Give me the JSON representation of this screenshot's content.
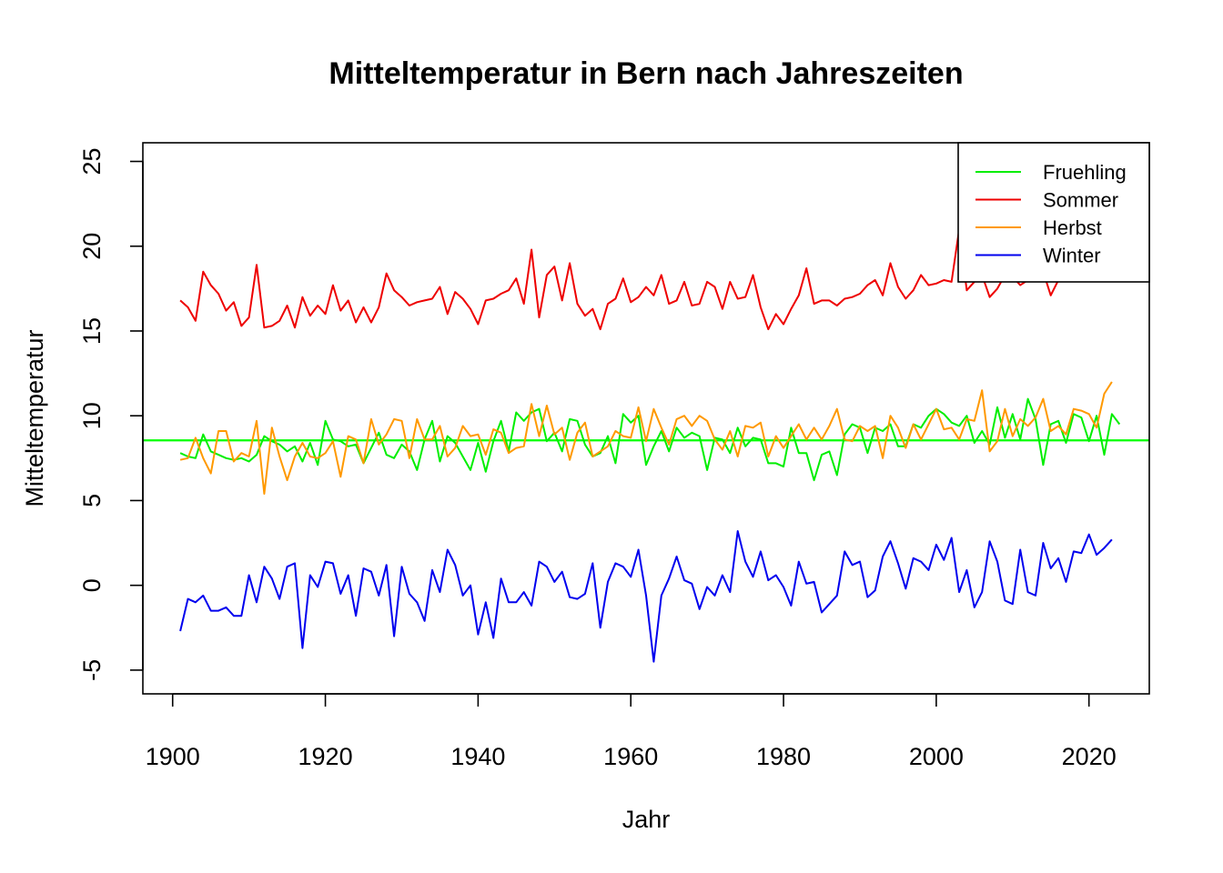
{
  "chart_data": {
    "type": "line",
    "title": "Mitteltemperatur in Bern nach Jahreszeiten",
    "xlabel": "Jahr",
    "ylabel": "Mitteltemperatur",
    "xlim": [
      1896.1,
      1927.9
    ],
    "ylim": [
      -6.4,
      26.1
    ],
    "x_ticks": [
      1900,
      1920,
      1940,
      1960,
      1980,
      2000,
      2020
    ],
    "y_ticks": [
      -5,
      0,
      5,
      10,
      15,
      20,
      25
    ],
    "x_tick_labels": [
      "1900",
      "1920",
      "1940",
      "1960",
      "1980",
      "2000",
      "2020"
    ],
    "y_tick_labels": [
      "-5",
      "0",
      "5",
      "10",
      "15",
      "20",
      "25"
    ],
    "legend_position": "top-right",
    "hline": {
      "y": 8.55,
      "color": "#00ff00"
    },
    "x_start": 1901,
    "series": [
      {
        "name": "Fruehling",
        "color": "#00ee00",
        "values": [
          7.8,
          7.6,
          7.5,
          8.9,
          7.9,
          7.7,
          7.5,
          7.4,
          7.5,
          7.3,
          7.7,
          8.8,
          8.5,
          8.3,
          7.9,
          8.2,
          7.3,
          8.4,
          7.1,
          9.7,
          8.6,
          8.5,
          8.2,
          8.3,
          7.2,
          8.1,
          9.0,
          7.7,
          7.5,
          8.3,
          7.9,
          6.8,
          8.6,
          9.7,
          7.3,
          8.8,
          8.4,
          7.6,
          6.8,
          8.4,
          6.7,
          8.5,
          9.7,
          7.9,
          10.2,
          9.7,
          10.2,
          10.4,
          8.5,
          9.0,
          7.9,
          9.8,
          9.7,
          8.3,
          7.6,
          7.8,
          8.8,
          7.2,
          10.1,
          9.6,
          10.0,
          7.1,
          8.2,
          9.1,
          7.9,
          9.3,
          8.7,
          9.0,
          8.8,
          6.8,
          8.7,
          8.6,
          7.8,
          9.3,
          8.2,
          8.7,
          8.6,
          7.2,
          7.2,
          7.0,
          9.3,
          7.8,
          7.8,
          6.2,
          7.7,
          7.9,
          6.5,
          8.9,
          9.5,
          9.3,
          7.8,
          9.3,
          9.1,
          9.5,
          8.2,
          8.2,
          9.5,
          9.3,
          10.0,
          10.4,
          10.1,
          9.6,
          9.4,
          10.0,
          8.4,
          9.1,
          8.3,
          10.5,
          8.7,
          10.1,
          8.6,
          11.0,
          9.8,
          7.1,
          9.5,
          9.7,
          8.4,
          10.1,
          9.9,
          8.5,
          10.0,
          7.7,
          10.1,
          9.5
        ]
      },
      {
        "name": "Sommer",
        "color": "#ee0000",
        "values": [
          16.8,
          16.4,
          15.6,
          18.5,
          17.7,
          17.2,
          16.2,
          16.7,
          15.3,
          15.8,
          18.9,
          15.2,
          15.3,
          15.6,
          16.5,
          15.2,
          17.0,
          15.9,
          16.5,
          16.0,
          17.7,
          16.2,
          16.8,
          15.5,
          16.4,
          15.5,
          16.4,
          18.4,
          17.4,
          17.0,
          16.5,
          16.7,
          16.8,
          16.9,
          17.6,
          16.0,
          17.3,
          16.9,
          16.3,
          15.4,
          16.8,
          16.9,
          17.2,
          17.4,
          18.1,
          16.6,
          19.8,
          15.8,
          18.3,
          18.8,
          16.8,
          19.0,
          16.6,
          15.9,
          16.3,
          15.1,
          16.6,
          16.9,
          18.1,
          16.7,
          17.0,
          17.6,
          17.1,
          18.3,
          16.6,
          16.8,
          17.9,
          16.5,
          16.6,
          17.9,
          17.6,
          16.3,
          17.9,
          16.9,
          17.0,
          18.3,
          16.4,
          15.1,
          16.0,
          15.4,
          16.3,
          17.1,
          18.7,
          16.6,
          16.8,
          16.8,
          16.5,
          16.9,
          17.0,
          17.2,
          17.7,
          18.0,
          17.1,
          19.0,
          17.6,
          16.9,
          17.4,
          18.3,
          17.7,
          17.8,
          18.0,
          17.9,
          21.0,
          17.4,
          17.9,
          18.3,
          17.0,
          17.5,
          18.3,
          18.2,
          17.7,
          18.0,
          18.9,
          18.5,
          17.1,
          18.0,
          19.1,
          19.4,
          18.5,
          19.2,
          19.0,
          20.3,
          19.5
        ]
      },
      {
        "name": "Herbst",
        "color": "#ff9900",
        "values": [
          7.4,
          7.5,
          8.7,
          7.5,
          6.6,
          9.1,
          9.1,
          7.3,
          7.8,
          7.6,
          9.7,
          5.4,
          9.3,
          7.6,
          6.2,
          7.6,
          8.4,
          7.6,
          7.5,
          7.8,
          8.5,
          6.4,
          8.8,
          8.6,
          7.2,
          9.8,
          8.3,
          8.9,
          9.8,
          9.7,
          7.5,
          9.8,
          8.6,
          8.6,
          9.4,
          7.6,
          8.1,
          9.4,
          8.8,
          8.9,
          7.7,
          9.2,
          9.0,
          7.8,
          8.1,
          8.2,
          10.7,
          8.8,
          10.6,
          8.9,
          9.3,
          7.4,
          9.0,
          9.6,
          7.6,
          7.9,
          8.2,
          9.1,
          8.8,
          8.7,
          10.5,
          8.5,
          10.4,
          9.3,
          8.3,
          9.8,
          10.0,
          9.4,
          10.0,
          9.7,
          8.6,
          8.0,
          9.1,
          7.6,
          9.4,
          9.3,
          9.6,
          7.6,
          8.8,
          8.1,
          8.8,
          9.5,
          8.6,
          9.3,
          8.6,
          9.4,
          10.4,
          8.6,
          8.5,
          9.4,
          9.1,
          9.4,
          7.5,
          10.0,
          9.3,
          8.1,
          9.5,
          8.6,
          9.5,
          10.4,
          9.2,
          9.3,
          8.6,
          9.8,
          9.7,
          11.5,
          7.9,
          8.5,
          10.4,
          8.8,
          9.8,
          9.4,
          9.9,
          11.0,
          9.1,
          9.4,
          8.9,
          10.4,
          10.3,
          10.1,
          9.3,
          11.3,
          12.0
        ]
      },
      {
        "name": "Winter",
        "color": "#0000ee",
        "values": [
          -2.7,
          -0.8,
          -1.0,
          -0.6,
          -1.5,
          -1.5,
          -1.3,
          -1.8,
          -1.8,
          0.6,
          -1.0,
          1.1,
          0.4,
          -0.8,
          1.1,
          1.3,
          -3.7,
          0.6,
          -0.1,
          1.4,
          1.3,
          -0.5,
          0.6,
          -1.8,
          1.0,
          0.8,
          -0.6,
          1.2,
          -3.0,
          1.1,
          -0.5,
          -1.0,
          -2.1,
          0.9,
          -0.4,
          2.1,
          1.2,
          -0.6,
          0.0,
          -2.9,
          -1.0,
          -3.1,
          0.4,
          -1.0,
          -1.0,
          -0.4,
          -1.2,
          1.4,
          1.1,
          0.2,
          0.8,
          -0.7,
          -0.8,
          -0.5,
          1.3,
          -2.5,
          0.2,
          1.3,
          1.1,
          0.5,
          2.1,
          -0.6,
          -4.5,
          -0.6,
          0.4,
          1.7,
          0.3,
          0.1,
          -1.4,
          -0.1,
          -0.6,
          0.6,
          -0.4,
          3.2,
          1.4,
          0.5,
          2.0,
          0.3,
          0.6,
          -0.1,
          -1.2,
          1.4,
          0.1,
          0.2,
          -1.6,
          -1.1,
          -0.6,
          2.0,
          1.2,
          1.4,
          -0.7,
          -0.3,
          1.7,
          2.6,
          1.3,
          -0.2,
          1.6,
          1.4,
          0.9,
          2.4,
          1.5,
          2.8,
          -0.4,
          0.9,
          -1.3,
          -0.4,
          2.6,
          1.4,
          -0.9,
          -1.1,
          2.1,
          -0.4,
          -0.6,
          2.5,
          1.0,
          1.6,
          0.2,
          2.0,
          1.9,
          3.0,
          1.8,
          2.2,
          2.7
        ]
      }
    ]
  }
}
